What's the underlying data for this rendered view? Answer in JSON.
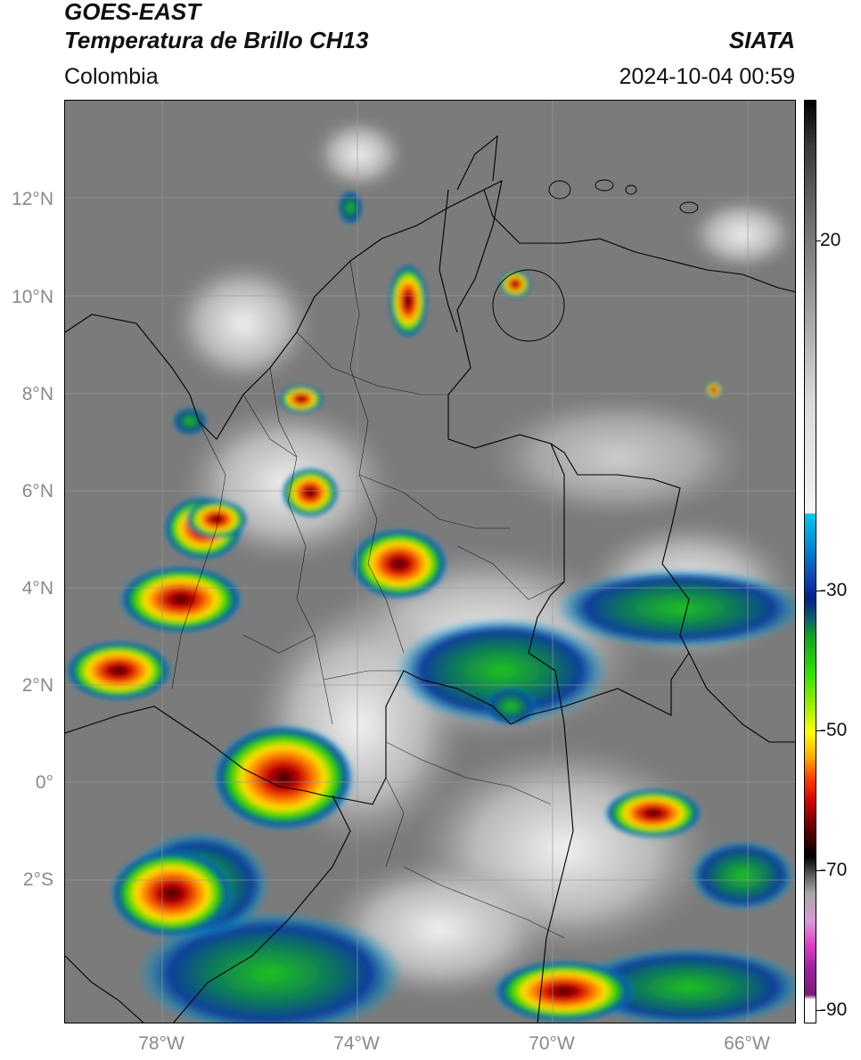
{
  "header": {
    "satellite": "GOES-EAST",
    "product": "Temperatura de Brillo CH13",
    "region": "Colombia",
    "agency": "SIATA",
    "datetime": "2024-10-04 00:59"
  },
  "map": {
    "type": "satellite-brightness-temperature",
    "lon_range": [
      -80,
      -65
    ],
    "lat_range": [
      -4.9,
      13.9
    ],
    "lat_ticks": [
      {
        "value": 12,
        "label": "12°N"
      },
      {
        "value": 10,
        "label": "10°N"
      },
      {
        "value": 8,
        "label": "8°N"
      },
      {
        "value": 6,
        "label": "6°N"
      },
      {
        "value": 4,
        "label": "4°N"
      },
      {
        "value": 2,
        "label": "2°N"
      },
      {
        "value": 0,
        "label": "0°"
      },
      {
        "value": -2,
        "label": "2°S"
      }
    ],
    "lon_ticks": [
      {
        "value": -78,
        "label": "78°W"
      },
      {
        "value": -74,
        "label": "74°W"
      },
      {
        "value": -70,
        "label": "70°W"
      },
      {
        "value": -66,
        "label": "66°W"
      }
    ],
    "gridlines": true
  },
  "colorbar": {
    "range": [
      -92,
      33
    ],
    "ticks": [
      {
        "value": 20,
        "label": "20"
      },
      {
        "value": -30,
        "label": "-30"
      },
      {
        "value": -50,
        "label": "-50"
      },
      {
        "value": -70,
        "label": "-70"
      },
      {
        "value": -90,
        "label": "-90"
      }
    ]
  }
}
